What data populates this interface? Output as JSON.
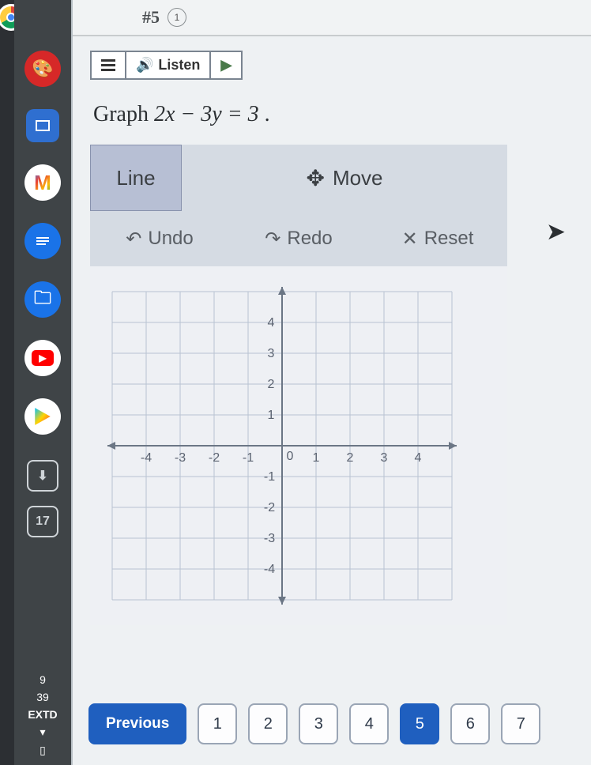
{
  "topbar": {
    "title": "#5",
    "badge": "1"
  },
  "listen": {
    "label": "Listen"
  },
  "question": {
    "prefix": "Graph ",
    "equation": "2x − 3y = 3",
    "suffix": " ."
  },
  "tools": {
    "line": "Line",
    "move": "Move",
    "undo": "Undo",
    "redo": "Redo",
    "reset": "Reset"
  },
  "graph": {
    "xmin": -5,
    "xmax": 5,
    "ymin": -5,
    "ymax": 5,
    "xticks": [
      -4,
      -3,
      -2,
      -1,
      0,
      1,
      2,
      3,
      4
    ],
    "yticks_pos": [
      1,
      2,
      3,
      4
    ],
    "yticks_neg": [
      -1,
      -2,
      -3,
      -4
    ],
    "grid_color": "#b8c2d2",
    "axis_color": "#6b7685",
    "bg_color": "#eef0f4"
  },
  "pager": {
    "previous": "Previous",
    "pages": [
      "1",
      "2",
      "3",
      "4",
      "5",
      "6",
      "7"
    ],
    "active_index": 4
  },
  "dock": {
    "time1": "9",
    "time2": "39",
    "label": "EXTD",
    "items": [
      {
        "name": "palette",
        "bg": "#d62828",
        "glyph": "🎨"
      },
      {
        "name": "app-blue",
        "bg": "#2f6fd0",
        "glyph": "□"
      },
      {
        "name": "gmail",
        "bg": "#ffffff",
        "glyph": "M"
      },
      {
        "name": "docs",
        "bg": "#1a73e8",
        "glyph": "≡"
      },
      {
        "name": "files",
        "bg": "#1a73e8",
        "glyph": "📁"
      },
      {
        "name": "youtube",
        "bg": "#ffffff",
        "glyph": "▶"
      },
      {
        "name": "play",
        "bg": "#ffffff",
        "glyph": "▶"
      }
    ],
    "squares": [
      {
        "name": "download",
        "glyph": "⬇"
      },
      {
        "name": "calendar",
        "glyph": "17"
      }
    ]
  }
}
